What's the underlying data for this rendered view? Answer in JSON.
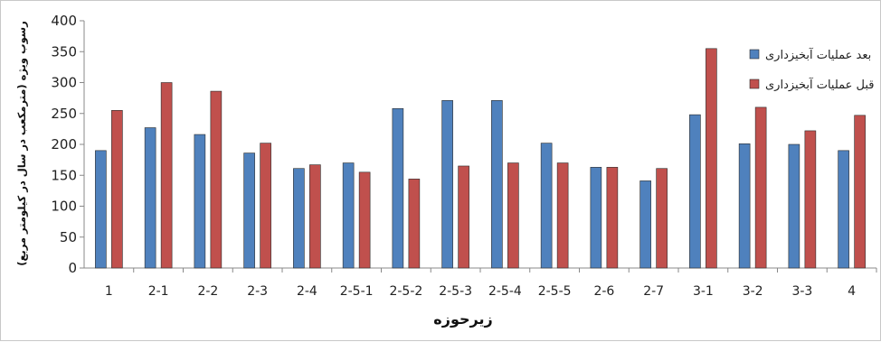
{
  "chart_data": {
    "type": "bar",
    "xlabel": "زیرحوزه",
    "ylabel": "رسوب ویژه (مترمکعب در سال در کیلومتر مربع)",
    "ylim": [
      0,
      400
    ],
    "yticks": [
      0,
      50,
      100,
      150,
      200,
      250,
      300,
      350,
      400
    ],
    "grid": false,
    "legend_position": "right",
    "categories": [
      "1",
      "2-1",
      "2-2",
      "2-3",
      "2-4",
      "2-5-1",
      "2-5-2",
      "2-5-3",
      "2-5-4",
      "2-5-5",
      "2-6",
      "2-7",
      "3-1",
      "3-2",
      "3-3",
      "4"
    ],
    "series": [
      {
        "name": "بعد عملیات آبخیزداری",
        "color": "#4f81bd",
        "values": [
          190,
          227,
          216,
          186,
          161,
          170,
          258,
          271,
          271,
          202,
          163,
          141,
          248,
          201,
          200,
          190
        ]
      },
      {
        "name": "قبل عملیات آبخیزداری",
        "color": "#c0504d",
        "values": [
          255,
          300,
          286,
          202,
          167,
          155,
          144,
          165,
          170,
          170,
          163,
          161,
          355,
          260,
          222,
          247
        ]
      }
    ]
  }
}
